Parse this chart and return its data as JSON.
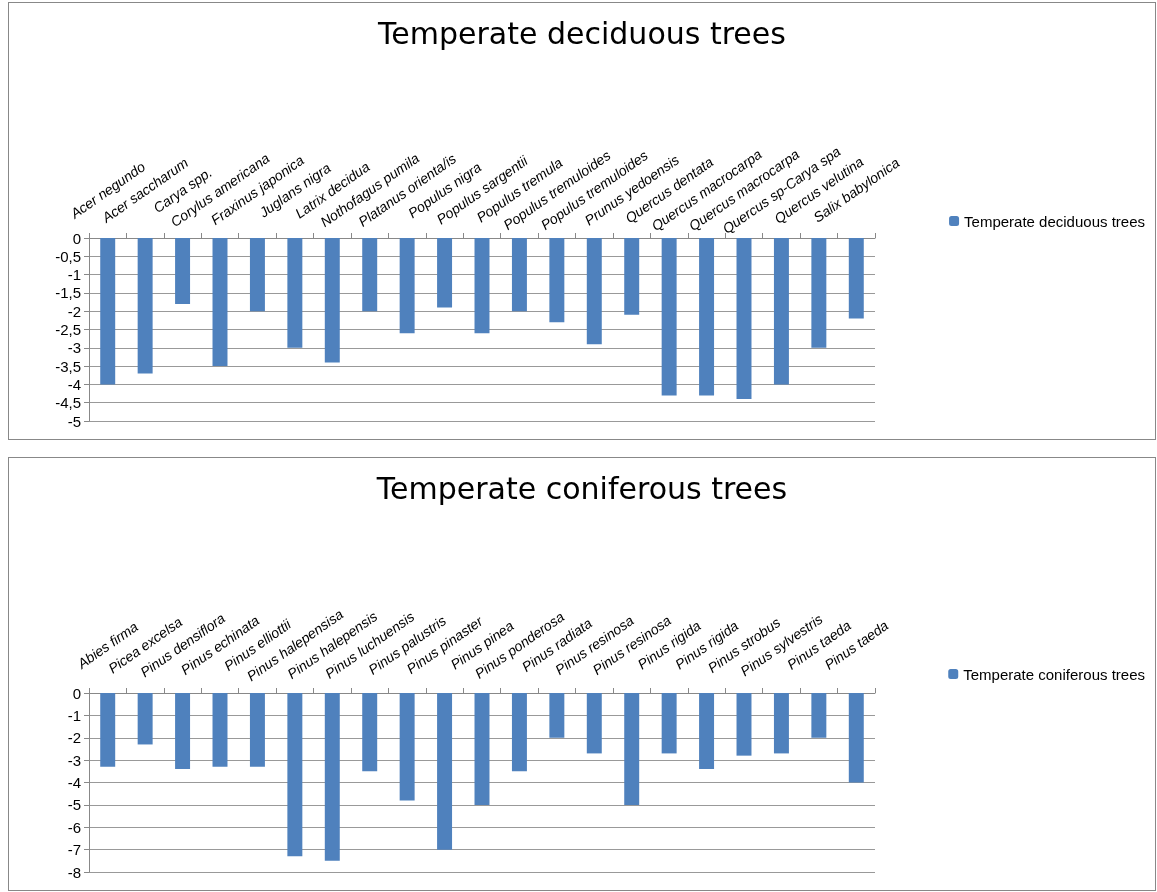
{
  "chart_data": [
    {
      "type": "bar",
      "title": "Temperate deciduous trees",
      "categories": [
        "Acer negundo",
        "Acer saccharum",
        "Carya spp.",
        "Corylus americana",
        "Fraxinus japonica",
        "Juglans nigra",
        "Latrix decidua",
        "Nothofagus pumila",
        "Platanus orienta/is",
        "Populus nigra",
        "Populus sargentii",
        "Populus tremula",
        "Populus tremuloides",
        "Populus tremuloides",
        "Prunus yedoensis",
        "Quercus dentata",
        "Quercus macrocarpa",
        "Quercus macrocarpa",
        "Quercus sp-Carya spa",
        "Quercus velutina",
        "Salix babylonica"
      ],
      "series": [
        {
          "name": "Temperate deciduous trees",
          "color": "#4f81bd",
          "values": [
            -4,
            -3.7,
            -1.8,
            -3.5,
            -2,
            -3,
            -3.4,
            -2,
            -2.6,
            -1.9,
            -2.6,
            -2,
            -2.3,
            -2.9,
            -2.1,
            -4.3,
            -4.3,
            -4.4,
            -4,
            -3,
            -2.2
          ]
        }
      ],
      "ylim": [
        -5,
        0
      ],
      "yticks": [
        {
          "value": 0,
          "label": "0"
        },
        {
          "value": -0.5,
          "label": "-0,5"
        },
        {
          "value": -1,
          "label": "-1"
        },
        {
          "value": -1.5,
          "label": "-1,5"
        },
        {
          "value": -2,
          "label": "-2"
        },
        {
          "value": -2.5,
          "label": "-2,5"
        },
        {
          "value": -3,
          "label": "-3"
        },
        {
          "value": -3.5,
          "label": "-3,5"
        },
        {
          "value": -4,
          "label": "-4"
        },
        {
          "value": -4.5,
          "label": "-4,5"
        },
        {
          "value": -5,
          "label": "-5"
        }
      ],
      "grid": "y",
      "legend": "right"
    },
    {
      "type": "bar",
      "title": "Temperate coniferous trees",
      "categories": [
        "Abies firma",
        "Picea excelsa",
        "Pinus densiflora",
        "Pinus echinata",
        "Pinus elliottii",
        "Pinus halepensisa",
        "Pinus halepensis",
        "Pinus luchuensis",
        "Pinus palustris",
        "Pinus pinaster",
        "Pinus pinea",
        "Pinus ponderosa",
        "Pinus radiata",
        "Pinus resinosa",
        "Pinus resinosa",
        "Pinus rigida",
        "Pinus rigida",
        "Pinus strobus",
        "Pinus sylvestris",
        "Pinus taeda",
        "Pinus taeda"
      ],
      "series": [
        {
          "name": "Temperate coniferous trees",
          "color": "#4f81bd",
          "values": [
            -3.3,
            -2.3,
            -3.4,
            -3.3,
            -3.3,
            -7.3,
            -7.5,
            -3.5,
            -4.8,
            -7,
            -5,
            -3.5,
            -2,
            -2.7,
            -5,
            -2.7,
            -3.4,
            -2.8,
            -2.7,
            -2,
            -4
          ]
        }
      ],
      "ylim": [
        -8,
        0
      ],
      "yticks": [
        0,
        -1,
        -2,
        -3,
        -4,
        -5,
        -6,
        -7,
        -8
      ],
      "grid": "y",
      "legend": "right"
    }
  ]
}
